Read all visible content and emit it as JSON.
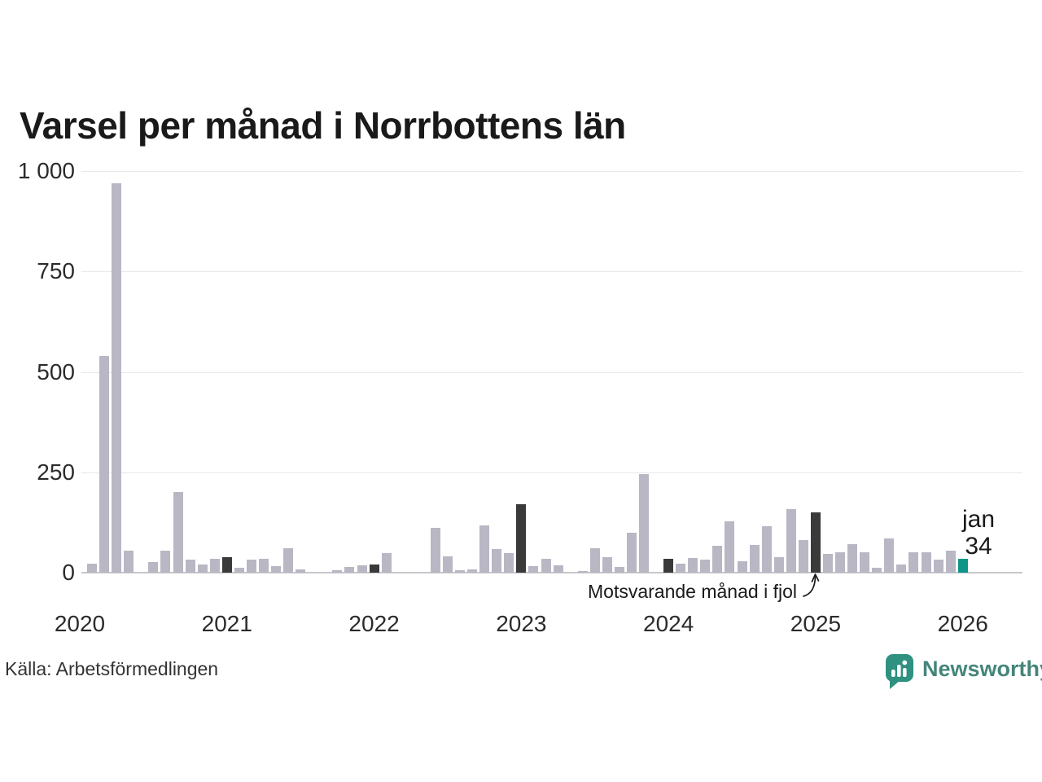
{
  "title": "Varsel per månad i Norrbottens län",
  "source": "Källa: Arbetsförmedlingen",
  "annotation": "Motsvarande månad i fjol",
  "current_label": {
    "month": "jan",
    "value": "34"
  },
  "logo": {
    "text": "Newsworthy"
  },
  "colors": {
    "bar": "#b9b7c4",
    "highlight": "#3a3a3a",
    "current": "#0f9488",
    "grid": "#e8e8ea",
    "axis_line": "#c7c7cb",
    "text": "#1a1a1a",
    "logo_bubble": "#2f9180",
    "logo_text": "#45857b"
  },
  "chart_data": {
    "type": "bar",
    "title": "Varsel per månad i Norrbottens län",
    "xlabel": "",
    "ylabel": "",
    "ylim": [
      0,
      1000
    ],
    "grid": true,
    "legend": "none",
    "x_start": "2020-01",
    "x_interval": "month",
    "x_end": "2026-01",
    "values": [
      0,
      22,
      540,
      970,
      55,
      0,
      26,
      55,
      200,
      33,
      20,
      35,
      39,
      12,
      33,
      35,
      16,
      60,
      8,
      0,
      0,
      7,
      14,
      18,
      21,
      48,
      0,
      0,
      0,
      112,
      41,
      7,
      9,
      118,
      59,
      48,
      170,
      16,
      35,
      18,
      0,
      5,
      61,
      39,
      14,
      100,
      245,
      0,
      35,
      22,
      37,
      33,
      67,
      128,
      28,
      69,
      116,
      39,
      158,
      81,
      150,
      47,
      51,
      71,
      51,
      12,
      85,
      20,
      51,
      51,
      33,
      55,
      34
    ],
    "highlight_indices": [
      12,
      24,
      36,
      48,
      60
    ],
    "highlight_meaning": "Motsvarande månad i fjol",
    "current_index": 72,
    "current_point_label": "jan 34",
    "y_ticks": [
      {
        "value": 0,
        "label": "0"
      },
      {
        "value": 250,
        "label": "250"
      },
      {
        "value": 500,
        "label": "500"
      },
      {
        "value": 750,
        "label": "750"
      },
      {
        "value": 1000,
        "label": "1 000"
      }
    ],
    "year_ticks": [
      {
        "index": 0,
        "label": "2020"
      },
      {
        "index": 12,
        "label": "2021"
      },
      {
        "index": 24,
        "label": "2022"
      },
      {
        "index": 36,
        "label": "2023"
      },
      {
        "index": 48,
        "label": "2024"
      },
      {
        "index": 60,
        "label": "2025"
      },
      {
        "index": 72,
        "label": "2026"
      }
    ]
  }
}
